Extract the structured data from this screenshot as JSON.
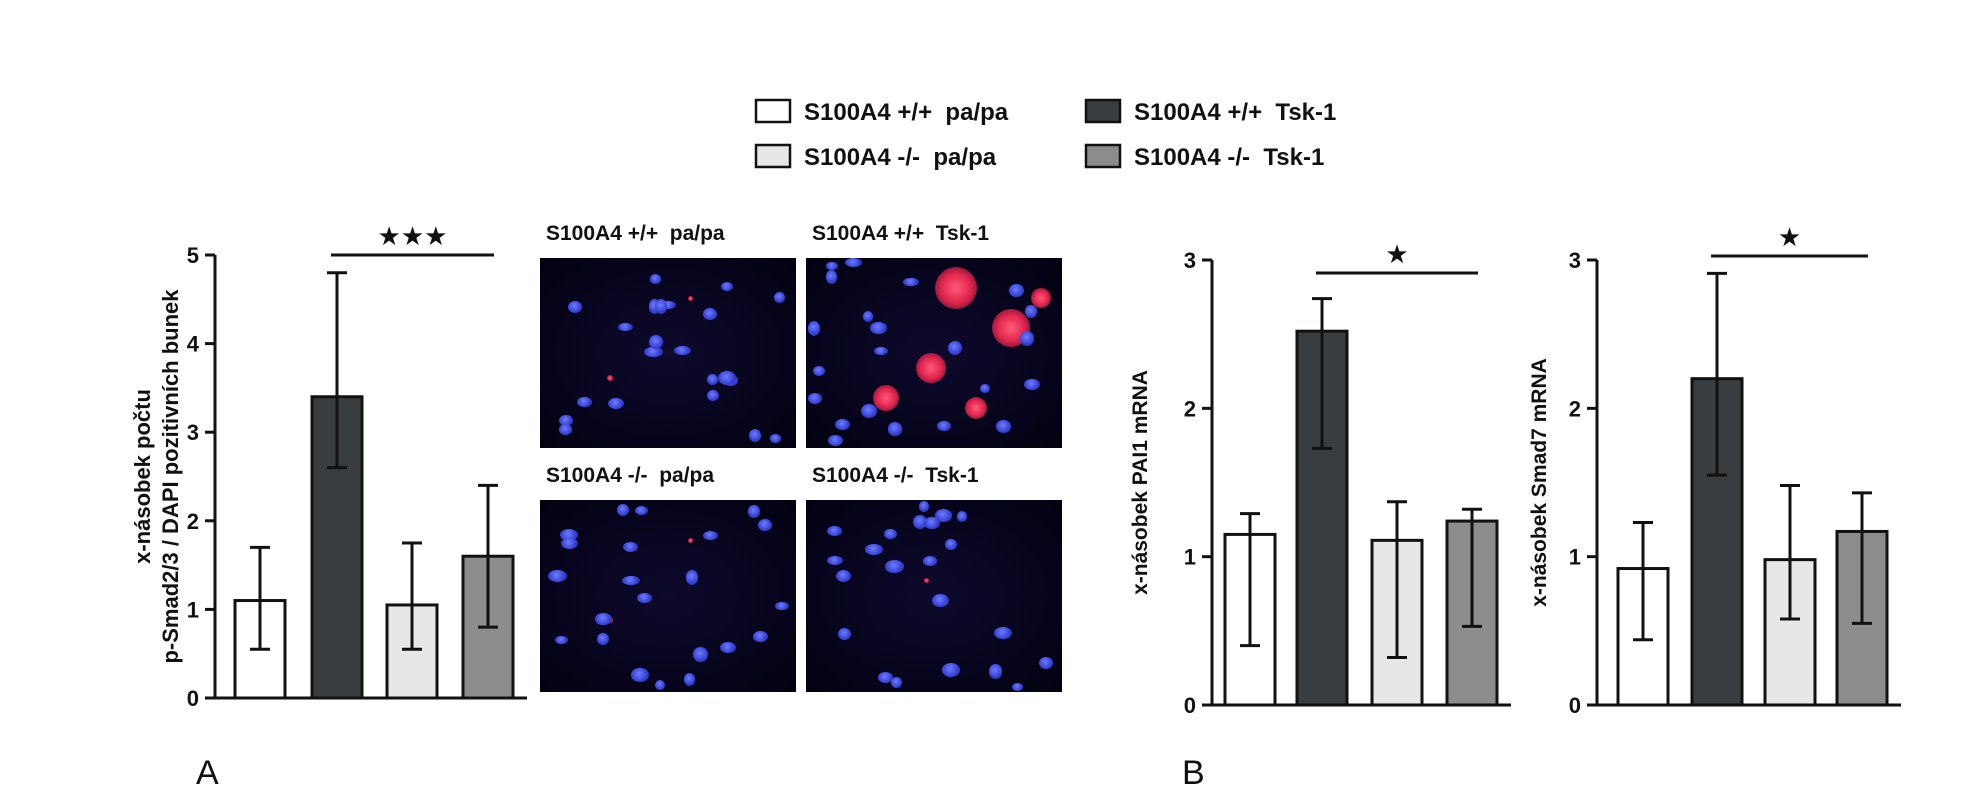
{
  "legend": [
    {
      "label": "S100A4 +/+  pa/pa",
      "color": "#ffffff"
    },
    {
      "label": "S100A4 +/+  Tsk-1",
      "color": "#3a3d40"
    },
    {
      "label": "S100A4 -/-  pa/pa",
      "color": "#e6e8e6"
    },
    {
      "label": "S100A4 -/-  Tsk-1",
      "color": "#8a8d8c"
    }
  ],
  "panel_letters": {
    "a": "A",
    "b": "B"
  },
  "micrographs": [
    {
      "label": "S100A4 +/+  pa/pa",
      "staining": "sparse-red"
    },
    {
      "label": "S100A4 +/+  Tsk-1",
      "staining": "strong-red"
    },
    {
      "label": "S100A4 -/-  pa/pa",
      "staining": "sparse-red"
    },
    {
      "label": "S100A4 -/-  Tsk-1",
      "staining": "faint-red"
    }
  ],
  "chart_data": [
    {
      "type": "bar",
      "panel": "A",
      "ylabel_lines": [
        "x-násobek počtu",
        "p-Smad2/3 / DAPI pozitivních bunek"
      ],
      "categories": [
        "S100A4 +/+  pa/pa",
        "S100A4 +/+  Tsk-1",
        "S100A4 -/-  pa/pa",
        "S100A4 -/-  Tsk-1"
      ],
      "values": [
        1.1,
        3.4,
        1.05,
        1.6
      ],
      "error_low": [
        0.55,
        2.6,
        0.55,
        0.8
      ],
      "error_high": [
        1.7,
        4.8,
        1.75,
        2.4
      ],
      "colors": [
        "#ffffff",
        "#3a3d40",
        "#e6e8e6",
        "#8a8d8c"
      ],
      "ylim": [
        0,
        5
      ],
      "yticks": [
        "0",
        "1",
        "2",
        "3",
        "4",
        "5"
      ],
      "significance": {
        "from": 1,
        "to": 3,
        "label": "★★★"
      }
    },
    {
      "type": "bar",
      "panel": "B",
      "ylabel_lines": [
        "x-násobek PAI1 mRNA"
      ],
      "categories": [
        "S100A4 +/+  pa/pa",
        "S100A4 +/+  Tsk-1",
        "S100A4 -/-  pa/pa",
        "S100A4 -/-  Tsk-1"
      ],
      "values": [
        1.15,
        2.52,
        1.11,
        1.24
      ],
      "error_low": [
        0.4,
        1.73,
        0.32,
        0.53
      ],
      "error_high": [
        1.29,
        2.74,
        1.37,
        1.32
      ],
      "colors": [
        "#ffffff",
        "#3a3d40",
        "#e6e8e6",
        "#8a8d8c"
      ],
      "ylim": [
        0,
        3
      ],
      "yticks": [
        "0",
        "1",
        "2",
        "3"
      ],
      "significance": {
        "from": 1,
        "to": 3,
        "label": "★"
      }
    },
    {
      "type": "bar",
      "panel": "B",
      "ylabel_lines": [
        "x-násobek Smad7 mRNA"
      ],
      "categories": [
        "S100A4 +/+  pa/pa",
        "S100A4 +/+  Tsk-1",
        "S100A4 -/-  pa/pa",
        "S100A4 -/-  Tsk-1"
      ],
      "values": [
        0.92,
        2.2,
        0.98,
        1.17
      ],
      "error_low": [
        0.44,
        1.55,
        0.58,
        0.55
      ],
      "error_high": [
        1.23,
        2.91,
        1.48,
        1.43
      ],
      "colors": [
        "#ffffff",
        "#3a3d40",
        "#e6e8e6",
        "#8a8d8c"
      ],
      "ylim": [
        0,
        3
      ],
      "yticks": [
        "0",
        "1",
        "2",
        "3"
      ],
      "significance": {
        "from": 1,
        "to": 3,
        "label": "★"
      }
    }
  ]
}
